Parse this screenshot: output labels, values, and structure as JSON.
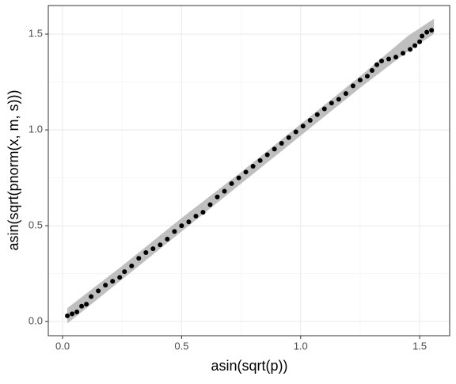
{
  "chart_data": {
    "type": "scatter",
    "xlabel": "asin(sqrt(p))",
    "ylabel": "asin(sqrt(pnorm(x, m, s)))",
    "x": [
      0.02,
      0.04,
      0.06,
      0.08,
      0.1,
      0.12,
      0.15,
      0.18,
      0.21,
      0.24,
      0.26,
      0.29,
      0.32,
      0.35,
      0.38,
      0.41,
      0.44,
      0.47,
      0.5,
      0.53,
      0.56,
      0.59,
      0.62,
      0.65,
      0.68,
      0.71,
      0.74,
      0.77,
      0.8,
      0.83,
      0.86,
      0.89,
      0.92,
      0.95,
      0.98,
      1.01,
      1.04,
      1.07,
      1.1,
      1.13,
      1.16,
      1.19,
      1.22,
      1.25,
      1.28,
      1.3,
      1.32,
      1.34,
      1.37,
      1.4,
      1.43,
      1.46,
      1.48,
      1.5,
      1.51,
      1.53,
      1.55
    ],
    "values": [
      0.03,
      0.04,
      0.05,
      0.08,
      0.09,
      0.13,
      0.16,
      0.19,
      0.21,
      0.23,
      0.26,
      0.29,
      0.33,
      0.36,
      0.38,
      0.4,
      0.43,
      0.47,
      0.5,
      0.52,
      0.55,
      0.57,
      0.61,
      0.65,
      0.68,
      0.72,
      0.75,
      0.78,
      0.81,
      0.84,
      0.87,
      0.9,
      0.93,
      0.96,
      0.99,
      1.02,
      1.05,
      1.08,
      1.11,
      1.14,
      1.16,
      1.19,
      1.23,
      1.26,
      1.28,
      1.31,
      1.34,
      1.36,
      1.37,
      1.38,
      1.4,
      1.42,
      1.44,
      1.46,
      1.49,
      1.51,
      1.52
    ],
    "color": "#000000",
    "band": {
      "color": "#bfbfbf",
      "x": [
        0.02,
        0.25,
        0.5,
        0.75,
        1.0,
        1.25,
        1.45,
        1.56
      ],
      "lower": [
        -0.01,
        0.22,
        0.47,
        0.72,
        0.97,
        1.22,
        1.41,
        1.5
      ],
      "upper": [
        0.07,
        0.29,
        0.54,
        0.78,
        1.03,
        1.28,
        1.49,
        1.58
      ]
    },
    "xlim": [
      -0.06,
      1.626
    ],
    "ylim": [
      -0.074,
      1.649
    ],
    "xticks": [
      {
        "value": 0,
        "label": "0.0"
      },
      0.5,
      {
        "value": 1,
        "label": "1.0"
      },
      1.5
    ],
    "yticks": [
      {
        "value": 0,
        "label": "0.0"
      },
      0.5,
      {
        "value": 1,
        "label": "1.0"
      },
      1.5
    ],
    "xminor": [
      0.25,
      0.75,
      1.25
    ],
    "yminor": [
      0.25,
      0.75,
      1.25
    ],
    "grid": true
  }
}
